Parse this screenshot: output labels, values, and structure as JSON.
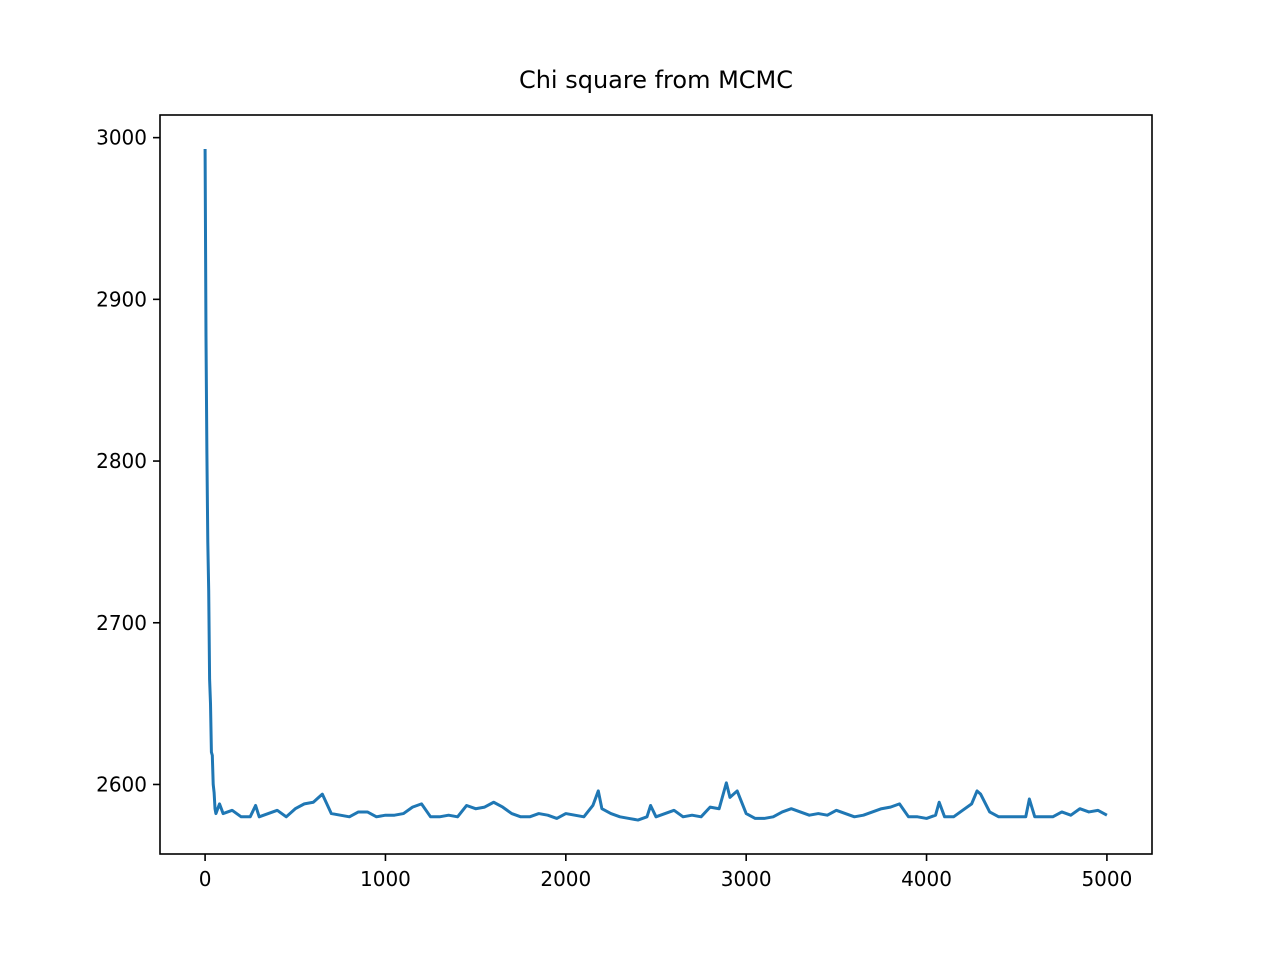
{
  "chart_data": {
    "type": "line",
    "title": "Chi square from MCMC",
    "xlim": [
      -250,
      5250
    ],
    "ylim": [
      2557,
      3014
    ],
    "xticks": [
      0,
      1000,
      2000,
      3000,
      4000,
      5000
    ],
    "yticks": [
      2600,
      2700,
      2800,
      2900,
      3000
    ],
    "grid": false,
    "series": [
      {
        "color": "#1f77b4",
        "x": [
          0,
          5,
          10,
          15,
          20,
          25,
          30,
          35,
          40,
          45,
          50,
          55,
          60,
          80,
          100,
          150,
          200,
          250,
          280,
          300,
          350,
          400,
          450,
          500,
          550,
          600,
          650,
          700,
          750,
          800,
          850,
          900,
          950,
          1000,
          1050,
          1100,
          1150,
          1200,
          1250,
          1300,
          1350,
          1400,
          1450,
          1500,
          1550,
          1600,
          1650,
          1700,
          1750,
          1800,
          1850,
          1900,
          1950,
          2000,
          2050,
          2100,
          2150,
          2180,
          2200,
          2250,
          2300,
          2350,
          2400,
          2450,
          2470,
          2500,
          2550,
          2600,
          2650,
          2700,
          2750,
          2800,
          2850,
          2890,
          2910,
          2950,
          3000,
          3050,
          3100,
          3150,
          3200,
          3250,
          3300,
          3350,
          3400,
          3450,
          3500,
          3550,
          3600,
          3650,
          3700,
          3750,
          3800,
          3850,
          3900,
          3950,
          4000,
          4050,
          4070,
          4100,
          4150,
          4200,
          4250,
          4280,
          4300,
          4350,
          4400,
          4450,
          4500,
          4550,
          4570,
          4600,
          4650,
          4700,
          4750,
          4800,
          4850,
          4900,
          4950,
          5000
        ],
        "values": [
          2993,
          2877,
          2805,
          2750,
          2720,
          2665,
          2650,
          2620,
          2618,
          2600,
          2595,
          2585,
          2582,
          2588,
          2582,
          2584,
          2580,
          2580,
          2587,
          2580,
          2582,
          2584,
          2580,
          2585,
          2588,
          2589,
          2594,
          2582,
          2581,
          2580,
          2583,
          2583,
          2580,
          2581,
          2581,
          2582,
          2586,
          2588,
          2580,
          2580,
          2581,
          2580,
          2587,
          2585,
          2586,
          2589,
          2586,
          2582,
          2580,
          2580,
          2582,
          2581,
          2579,
          2582,
          2581,
          2580,
          2587,
          2596,
          2585,
          2582,
          2580,
          2579,
          2578,
          2580,
          2587,
          2580,
          2582,
          2584,
          2580,
          2581,
          2580,
          2586,
          2585,
          2601,
          2592,
          2596,
          2582,
          2579,
          2579,
          2580,
          2583,
          2585,
          2583,
          2581,
          2582,
          2581,
          2584,
          2582,
          2580,
          2581,
          2583,
          2585,
          2586,
          2588,
          2580,
          2580,
          2579,
          2581,
          2589,
          2580,
          2580,
          2584,
          2588,
          2596,
          2594,
          2583,
          2580,
          2580,
          2580,
          2580,
          2591,
          2580,
          2580,
          2580,
          2583,
          2581,
          2585,
          2583,
          2584,
          2581
        ]
      }
    ]
  }
}
